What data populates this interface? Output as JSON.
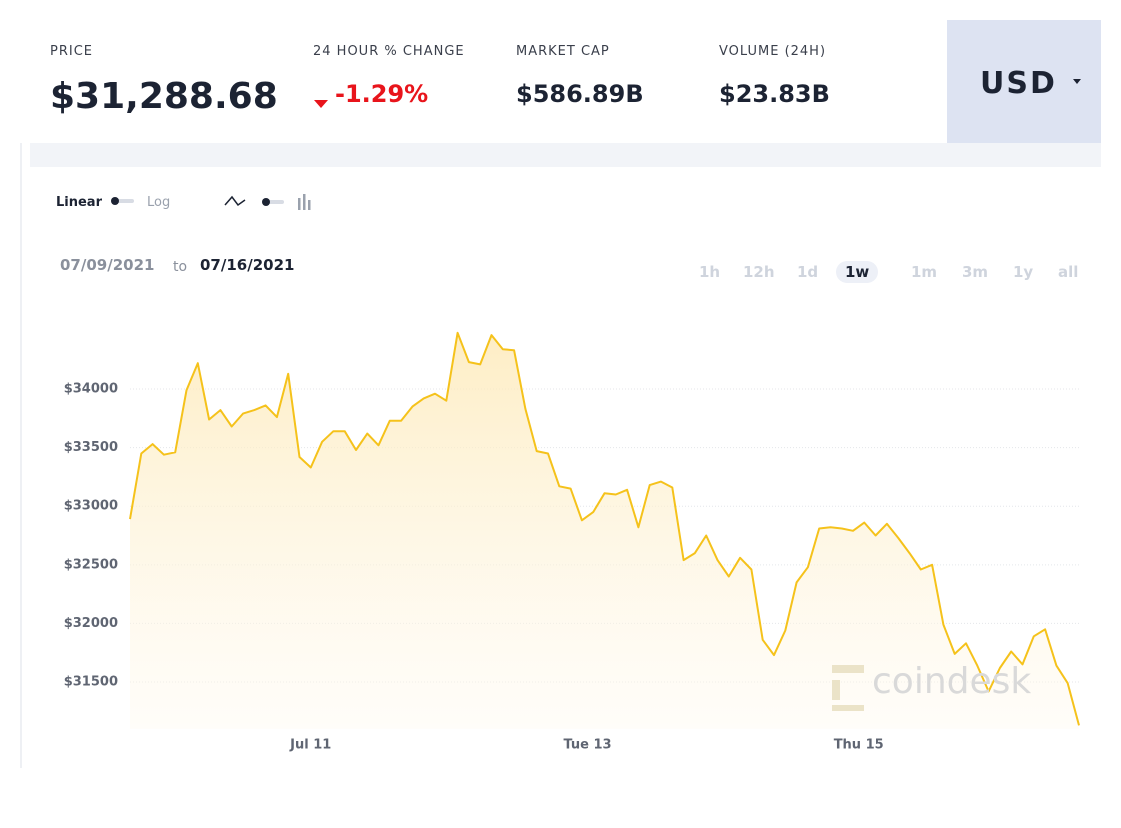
{
  "header": {
    "stats": [
      {
        "label": "PRICE",
        "value": "$31,288.68"
      },
      {
        "label": "24 HOUR % CHANGE",
        "value": "-1.29%"
      },
      {
        "label": "MARKET CAP",
        "value": "$586.89B"
      },
      {
        "label": "VOLUME (24H)",
        "value": "$23.83B"
      }
    ],
    "currency": "USD"
  },
  "controls": {
    "scale": [
      "Linear",
      "Log"
    ],
    "date_from": "07/09/2021",
    "date_to_word": "to",
    "date_to": "07/16/2021",
    "periods": [
      "1h",
      "12h",
      "1d",
      "1w",
      "1m",
      "3m",
      "1y",
      "all"
    ],
    "active_period": "1w"
  },
  "watermark": "coindesk",
  "chart_data": {
    "type": "line",
    "color": "#f5c21b",
    "grid": true,
    "x": [
      0,
      2,
      4,
      6,
      8,
      10,
      12,
      14,
      16,
      18,
      20,
      22,
      24,
      26,
      28,
      30,
      32,
      34,
      36,
      38,
      40,
      42,
      44,
      46,
      48,
      50,
      52,
      54,
      56,
      58,
      60,
      62,
      64,
      66,
      68,
      70,
      72,
      74,
      76,
      78,
      80,
      82,
      84,
      86,
      88,
      90,
      92,
      94,
      96,
      98,
      100,
      102,
      104,
      106,
      108,
      110,
      112,
      114,
      116,
      118,
      120,
      122,
      124,
      126,
      128,
      130,
      132,
      134,
      136,
      138,
      140,
      142,
      144,
      146,
      148,
      150,
      152,
      154,
      156,
      158,
      160,
      162,
      164,
      166,
      168
    ],
    "values": [
      32890,
      33450,
      33530,
      33440,
      33460,
      33990,
      34220,
      33740,
      33820,
      33680,
      33790,
      33820,
      33860,
      33760,
      34130,
      33420,
      33330,
      33550,
      33640,
      33640,
      33480,
      33620,
      33520,
      33730,
      33730,
      33850,
      33920,
      33960,
      33900,
      34480,
      34230,
      34210,
      34460,
      34340,
      34330,
      33830,
      33470,
      33450,
      33170,
      33150,
      32880,
      32950,
      33110,
      33100,
      33140,
      32820,
      33180,
      33210,
      33160,
      32540,
      32600,
      32750,
      32540,
      32400,
      32560,
      32460,
      31860,
      31730,
      31940,
      32350,
      32480,
      32810,
      32820,
      32810,
      32790,
      32860,
      32750,
      32850,
      32730,
      32600,
      32460,
      32500,
      31990,
      31740,
      31830,
      31640,
      31420,
      31620,
      31760,
      31650,
      31890,
      31950,
      31640,
      31490,
      31130
    ],
    "xlim": [
      0,
      168
    ],
    "xticks": [
      {
        "value": 32,
        "label": "Jul 11"
      },
      {
        "value": 81,
        "label": "Tue 13"
      },
      {
        "value": 129,
        "label": "Thu 15"
      }
    ],
    "ylim": [
      31100,
      34600
    ],
    "yticks": [
      {
        "value": 31500,
        "label": "$31500"
      },
      {
        "value": 32000,
        "label": "$32000"
      },
      {
        "value": 32500,
        "label": "$32500"
      },
      {
        "value": 33000,
        "label": "$33000"
      },
      {
        "value": 33500,
        "label": "$33500"
      },
      {
        "value": 34000,
        "label": "$34000"
      }
    ]
  }
}
